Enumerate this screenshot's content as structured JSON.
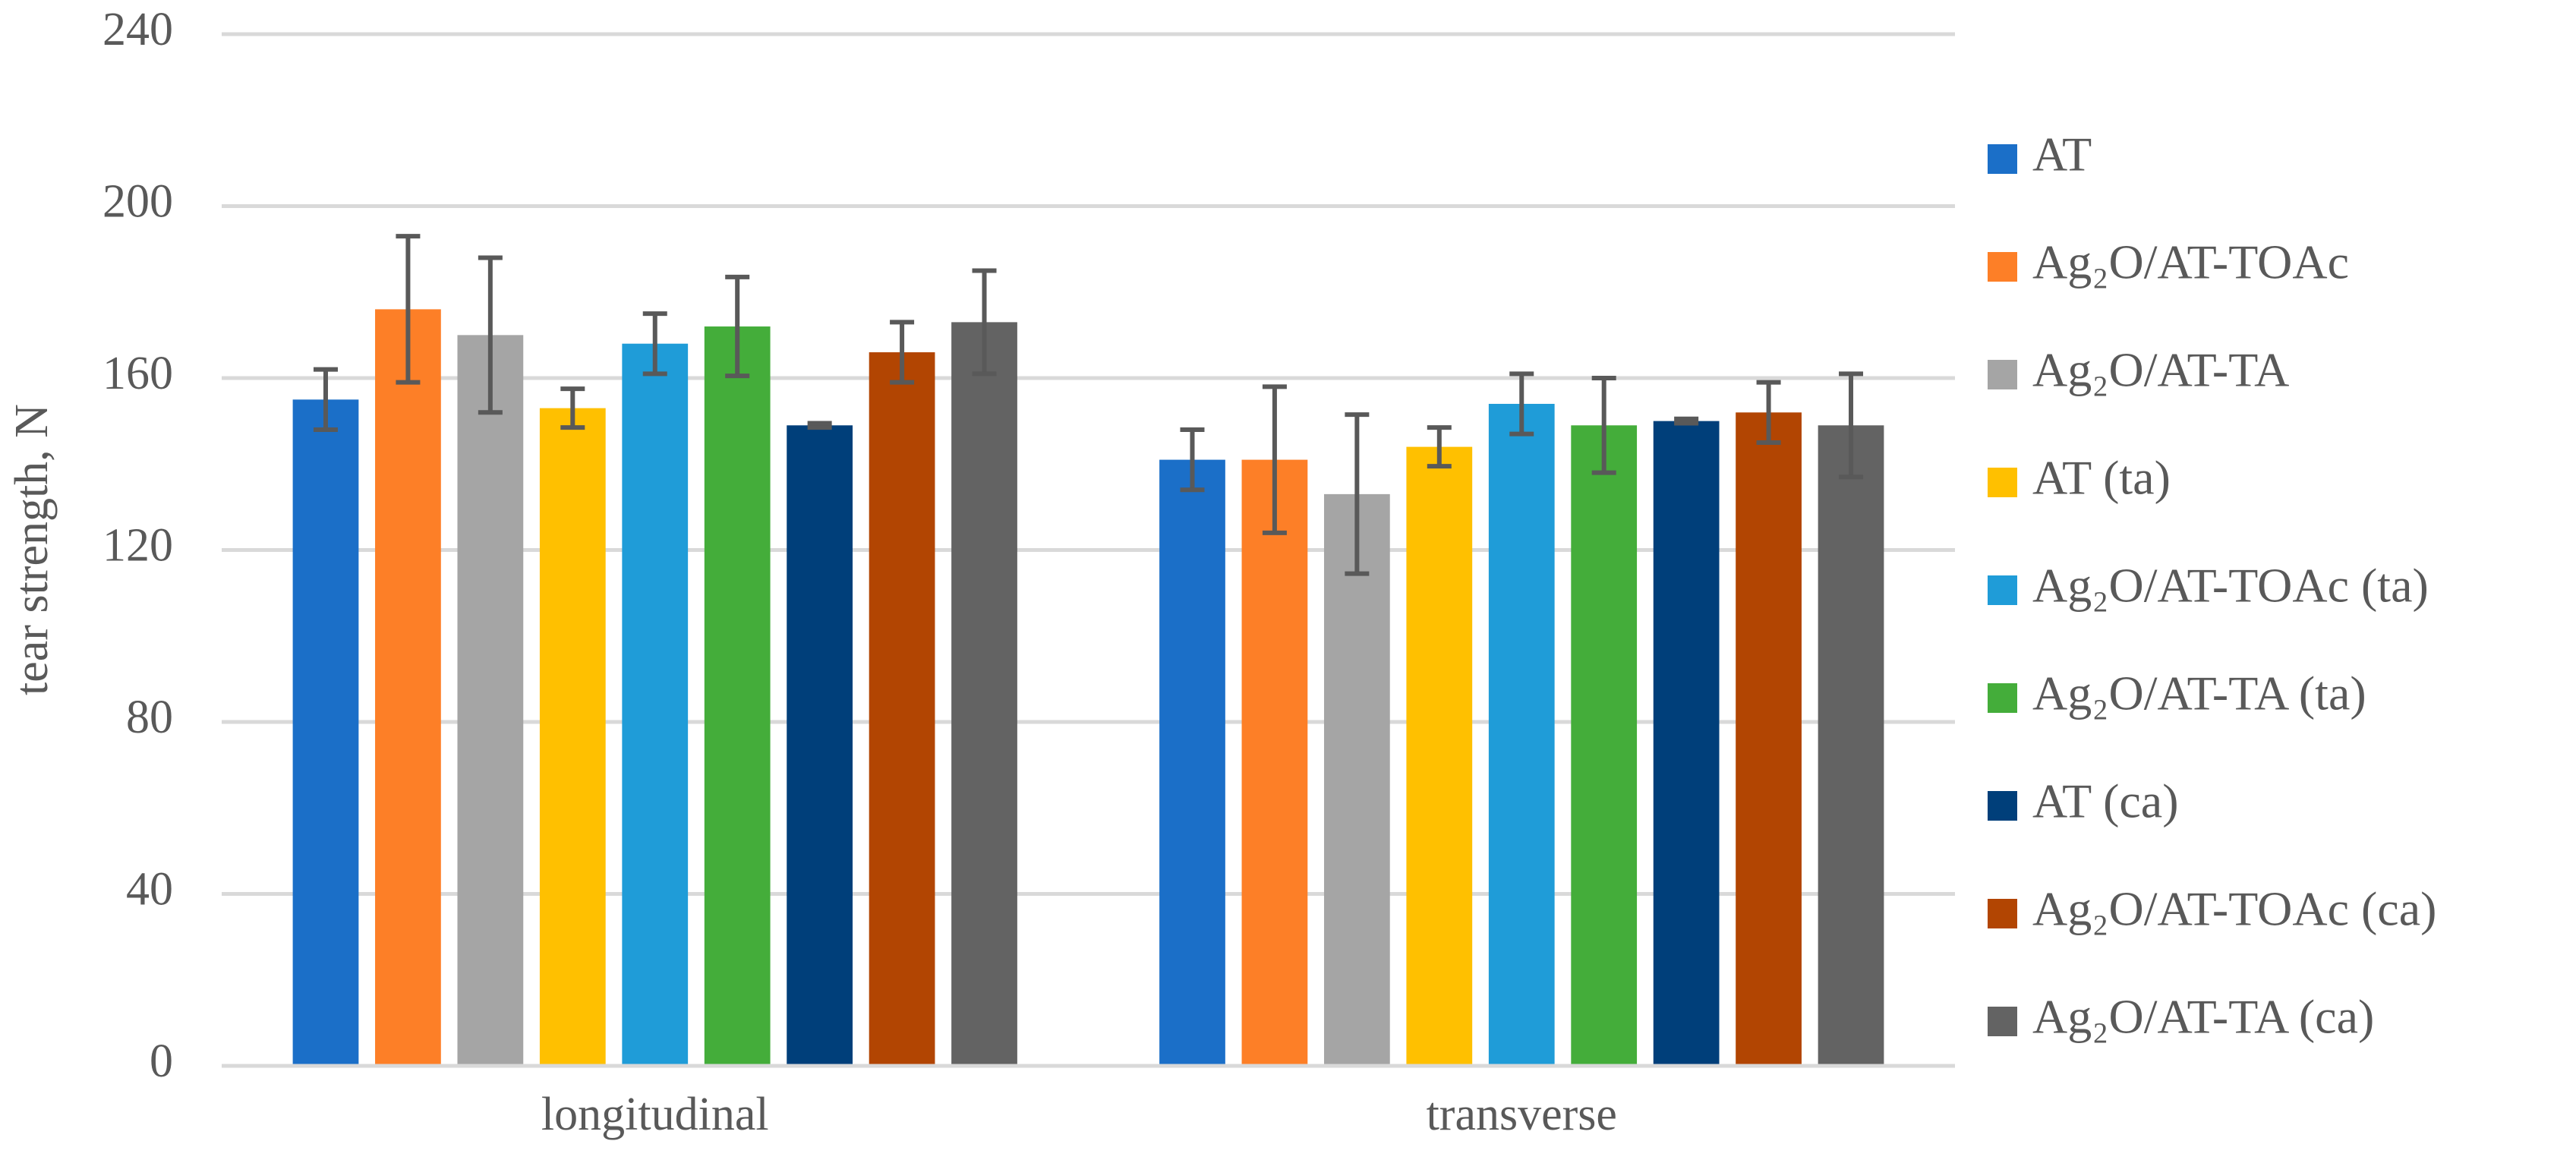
{
  "chart_data": {
    "type": "bar",
    "y_label": "tear strength, N",
    "categories": [
      "longitudinal",
      "transverse"
    ],
    "ylim": [
      0,
      240
    ],
    "yticks": [
      0,
      40,
      80,
      120,
      160,
      200,
      240
    ],
    "grid": true,
    "legend": "right",
    "series": [
      {
        "name": "AT",
        "color": "#1b6fc8",
        "values": [
          155,
          141
        ],
        "errors": [
          7,
          7
        ]
      },
      {
        "name": "Ag₂O/AT-TOAc",
        "color": "#fd7f27",
        "values": [
          176,
          141
        ],
        "errors": [
          17,
          17
        ]
      },
      {
        "name": "Ag₂O/AT-TA",
        "color": "#a5a5a5",
        "values": [
          170,
          133
        ],
        "errors": [
          18,
          18.5
        ]
      },
      {
        "name": "AT (ta)",
        "color": "#ffc000",
        "values": [
          153,
          144
        ],
        "errors": [
          4.5,
          4.5
        ]
      },
      {
        "name": "Ag₂O/AT-TOAc (ta)",
        "color": "#1f9cd8",
        "values": [
          168,
          154
        ],
        "errors": [
          7,
          7
        ]
      },
      {
        "name": "Ag₂O/AT-TA (ta)",
        "color": "#44ad3a",
        "values": [
          172,
          149
        ],
        "errors": [
          11.5,
          11
        ]
      },
      {
        "name": "AT (ca)",
        "color": "#003f7a",
        "values": [
          149,
          150
        ],
        "errors": [
          0.5,
          0.5
        ]
      },
      {
        "name": "Ag₂O/AT-TOAc (ca)",
        "color": "#b24502",
        "values": [
          166,
          152
        ],
        "errors": [
          7,
          7
        ]
      },
      {
        "name": "Ag₂O/AT-TA (ca)",
        "color": "#636363",
        "values": [
          173,
          149
        ],
        "errors": [
          12,
          12
        ]
      }
    ]
  }
}
